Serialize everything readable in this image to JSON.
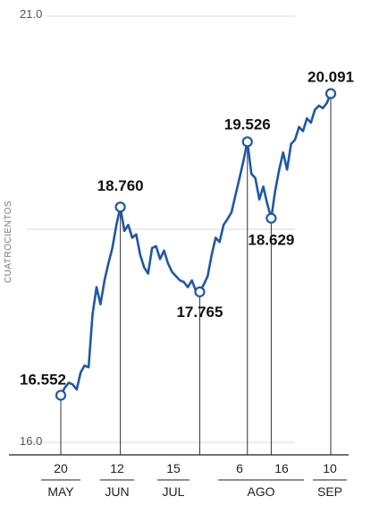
{
  "chart_data": {
    "type": "line",
    "ylabel": "CUATROCIENTOS",
    "ylim": [
      16.0,
      21.0
    ],
    "yticks": [
      "21.0",
      "16.0"
    ],
    "grid": "horizontal",
    "line_color": "#1f57a8",
    "x_ticks": [
      {
        "day": "20",
        "month": "MAY"
      },
      {
        "day": "12",
        "month": "JUN"
      },
      {
        "day": "15",
        "month": "JUL"
      },
      {
        "day": "6",
        "month": ""
      },
      {
        "day": "16",
        "month": "AGO"
      },
      {
        "day": "10",
        "month": "SEP"
      }
    ],
    "annotations": [
      {
        "label": "16.552",
        "value": 16.552,
        "x": "20 MAY"
      },
      {
        "label": "18.760",
        "value": 18.76,
        "x": "12 JUN"
      },
      {
        "label": "17.765",
        "value": 17.765,
        "x": "15 JUL"
      },
      {
        "label": "19.526",
        "value": 19.526,
        "x": "6 AGO"
      },
      {
        "label": "18.629",
        "value": 18.629,
        "x": "16 AGO"
      },
      {
        "label": "20.091",
        "value": 20.091,
        "x": "10 SEP"
      }
    ],
    "series": [
      {
        "values": [
          {
            "t": 0,
            "v": 16.552
          },
          {
            "t": 2,
            "v": 16.64
          },
          {
            "t": 4,
            "v": 16.7
          },
          {
            "t": 6,
            "v": 16.68
          },
          {
            "t": 8,
            "v": 16.62
          },
          {
            "t": 10,
            "v": 16.82
          },
          {
            "t": 12,
            "v": 16.9
          },
          {
            "t": 14,
            "v": 16.88
          },
          {
            "t": 16,
            "v": 17.5
          },
          {
            "t": 18,
            "v": 17.82
          },
          {
            "t": 20,
            "v": 17.62
          },
          {
            "t": 22,
            "v": 17.9
          },
          {
            "t": 24,
            "v": 18.1
          },
          {
            "t": 26,
            "v": 18.28
          },
          {
            "t": 28,
            "v": 18.55
          },
          {
            "t": 30,
            "v": 18.76
          },
          {
            "t": 32,
            "v": 18.48
          },
          {
            "t": 34,
            "v": 18.55
          },
          {
            "t": 36,
            "v": 18.4
          },
          {
            "t": 38,
            "v": 18.44
          },
          {
            "t": 40,
            "v": 18.2
          },
          {
            "t": 42,
            "v": 18.05
          },
          {
            "t": 44,
            "v": 17.98
          },
          {
            "t": 46,
            "v": 18.28
          },
          {
            "t": 48,
            "v": 18.3
          },
          {
            "t": 50,
            "v": 18.15
          },
          {
            "t": 52,
            "v": 18.25
          },
          {
            "t": 54,
            "v": 18.1
          },
          {
            "t": 56,
            "v": 18.0
          },
          {
            "t": 58,
            "v": 17.95
          },
          {
            "t": 60,
            "v": 17.9
          },
          {
            "t": 62,
            "v": 17.88
          },
          {
            "t": 64,
            "v": 17.82
          },
          {
            "t": 66,
            "v": 17.9
          },
          {
            "t": 68,
            "v": 17.78
          },
          {
            "t": 70,
            "v": 17.765
          },
          {
            "t": 72,
            "v": 17.85
          },
          {
            "t": 74,
            "v": 17.95
          },
          {
            "t": 76,
            "v": 18.2
          },
          {
            "t": 78,
            "v": 18.4
          },
          {
            "t": 80,
            "v": 18.35
          },
          {
            "t": 82,
            "v": 18.55
          },
          {
            "t": 84,
            "v": 18.62
          },
          {
            "t": 86,
            "v": 18.7
          },
          {
            "t": 88,
            "v": 18.9
          },
          {
            "t": 90,
            "v": 19.1
          },
          {
            "t": 92,
            "v": 19.3
          },
          {
            "t": 94,
            "v": 19.526
          },
          {
            "t": 96,
            "v": 19.15
          },
          {
            "t": 98,
            "v": 19.1
          },
          {
            "t": 100,
            "v": 18.85
          },
          {
            "t": 102,
            "v": 19.0
          },
          {
            "t": 104,
            "v": 18.8
          },
          {
            "t": 106,
            "v": 18.629
          },
          {
            "t": 108,
            "v": 18.95
          },
          {
            "t": 110,
            "v": 19.2
          },
          {
            "t": 112,
            "v": 19.4
          },
          {
            "t": 114,
            "v": 19.2
          },
          {
            "t": 116,
            "v": 19.5
          },
          {
            "t": 118,
            "v": 19.55
          },
          {
            "t": 120,
            "v": 19.7
          },
          {
            "t": 122,
            "v": 19.65
          },
          {
            "t": 124,
            "v": 19.8
          },
          {
            "t": 126,
            "v": 19.75
          },
          {
            "t": 128,
            "v": 19.9
          },
          {
            "t": 130,
            "v": 19.95
          },
          {
            "t": 132,
            "v": 19.92
          },
          {
            "t": 134,
            "v": 19.98
          },
          {
            "t": 136,
            "v": 20.091
          }
        ]
      }
    ]
  }
}
